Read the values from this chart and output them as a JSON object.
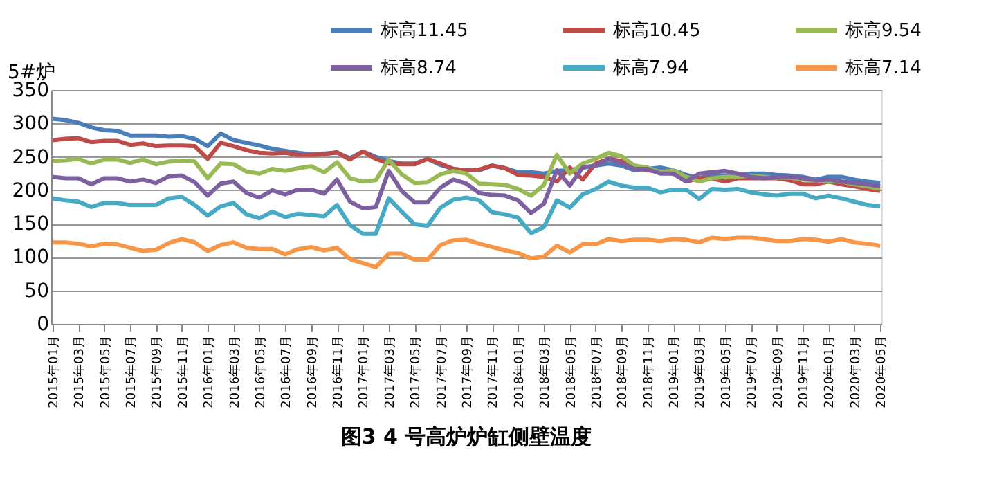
{
  "chart_data": {
    "type": "line",
    "ylabel": "5#炉",
    "categories": [
      "2015年01月",
      null,
      "2015年03月",
      null,
      "2015年05月",
      null,
      "2015年07月",
      null,
      "2015年09月",
      null,
      "2015年11月",
      null,
      "2016年01月",
      null,
      "2016年03月",
      null,
      "2016年05月",
      null,
      "2016年07月",
      null,
      "2016年09月",
      null,
      "2016年11月",
      null,
      "2017年01月",
      null,
      "2017年03月",
      null,
      "2017年05月",
      null,
      "2017年07月",
      null,
      "2017年09月",
      null,
      "2017年11月",
      null,
      "2018年01月",
      null,
      "2018年03月",
      null,
      "2018年05月",
      null,
      "2018年07月",
      null,
      "2018年09月",
      null,
      "2018年11月",
      null,
      "2019年01月",
      null,
      "2019年03月",
      null,
      "2019年05月",
      null,
      "2019年07月",
      null,
      "2019年09月",
      null,
      "2019年11月",
      null,
      "2020年01月",
      null,
      "2020年03月",
      null,
      "2020年05月"
    ],
    "series": [
      {
        "name": "标高11.45",
        "color": "#4a7ebb",
        "values": [
          307,
          305,
          301,
          294,
          290,
          289,
          282,
          282,
          282,
          280,
          281,
          277,
          266,
          285,
          275,
          271,
          267,
          262,
          259,
          256,
          254,
          255,
          256,
          248,
          258,
          250,
          244,
          240,
          240,
          247,
          238,
          232,
          230,
          230,
          237,
          233,
          227,
          227,
          225,
          229,
          230,
          234,
          237,
          240,
          237,
          230,
          232,
          234,
          230,
          223,
          218,
          223,
          222,
          223,
          225,
          225,
          223,
          222,
          220,
          216,
          220,
          220,
          216,
          213,
          211
        ]
      },
      {
        "name": "标高10.45",
        "color": "#be4b48",
        "values": [
          275,
          277,
          278,
          272,
          274,
          274,
          268,
          270,
          266,
          267,
          267,
          266,
          247,
          271,
          266,
          260,
          256,
          255,
          256,
          253,
          253,
          254,
          257,
          246,
          258,
          247,
          240,
          239,
          239,
          247,
          240,
          232,
          230,
          231,
          237,
          233,
          223,
          222,
          220,
          213,
          234,
          216,
          240,
          247,
          244,
          234,
          230,
          227,
          225,
          213,
          218,
          218,
          213,
          218,
          218,
          218,
          218,
          215,
          209,
          209,
          213,
          209,
          206,
          202,
          199
        ]
      },
      {
        "name": "标高9.54",
        "color": "#98b954",
        "values": [
          244,
          245,
          247,
          240,
          246,
          246,
          241,
          246,
          239,
          243,
          244,
          243,
          218,
          240,
          239,
          228,
          225,
          232,
          229,
          233,
          236,
          227,
          242,
          218,
          213,
          215,
          246,
          224,
          211,
          212,
          224,
          229,
          225,
          210,
          209,
          208,
          202,
          192,
          208,
          253,
          225,
          240,
          247,
          256,
          251,
          237,
          234,
          227,
          230,
          220,
          213,
          218,
          220,
          220,
          222,
          220,
          219,
          219,
          216,
          215,
          213,
          213,
          209,
          206,
          202
        ]
      },
      {
        "name": "标高8.74",
        "color": "#7d60a0",
        "values": [
          220,
          218,
          218,
          209,
          218,
          218,
          213,
          216,
          211,
          221,
          222,
          212,
          192,
          210,
          213,
          196,
          189,
          200,
          194,
          201,
          201,
          195,
          216,
          183,
          173,
          175,
          229,
          199,
          182,
          182,
          204,
          216,
          210,
          196,
          193,
          192,
          185,
          166,
          180,
          230,
          207,
          234,
          237,
          247,
          240,
          232,
          232,
          225,
          225,
          213,
          225,
          227,
          229,
          225,
          220,
          218,
          220,
          220,
          218,
          215,
          216,
          213,
          211,
          209,
          206
        ]
      },
      {
        "name": "标高7.94",
        "color": "#46aac5",
        "values": [
          188,
          185,
          183,
          175,
          181,
          181,
          178,
          178,
          178,
          188,
          190,
          178,
          162,
          176,
          181,
          164,
          158,
          168,
          160,
          165,
          163,
          161,
          178,
          148,
          135,
          135,
          188,
          168,
          149,
          147,
          174,
          186,
          189,
          185,
          167,
          164,
          159,
          136,
          145,
          185,
          174,
          194,
          202,
          213,
          207,
          204,
          204,
          197,
          201,
          201,
          187,
          202,
          201,
          202,
          197,
          194,
          192,
          195,
          195,
          188,
          192,
          188,
          183,
          178,
          176
        ]
      },
      {
        "name": "标高7.14",
        "color": "#f79646",
        "values": [
          122,
          122,
          120,
          116,
          120,
          119,
          114,
          109,
          111,
          121,
          127,
          122,
          109,
          118,
          122,
          114,
          112,
          112,
          104,
          112,
          115,
          110,
          114,
          97,
          91,
          85,
          105,
          105,
          96,
          96,
          118,
          125,
          126,
          120,
          115,
          110,
          106,
          98,
          101,
          117,
          107,
          119,
          119,
          127,
          124,
          126,
          126,
          124,
          127,
          126,
          122,
          129,
          127,
          129,
          129,
          127,
          124,
          124,
          127,
          126,
          123,
          127,
          122,
          120,
          117
        ]
      }
    ],
    "ylim": [
      0,
      350
    ],
    "yticks": [
      0,
      50,
      100,
      150,
      200,
      250,
      300,
      350
    ],
    "grid": "y",
    "legend": "top",
    "annotations": [
      "图3    4 号高炉炉缸侧壁温度"
    ]
  }
}
